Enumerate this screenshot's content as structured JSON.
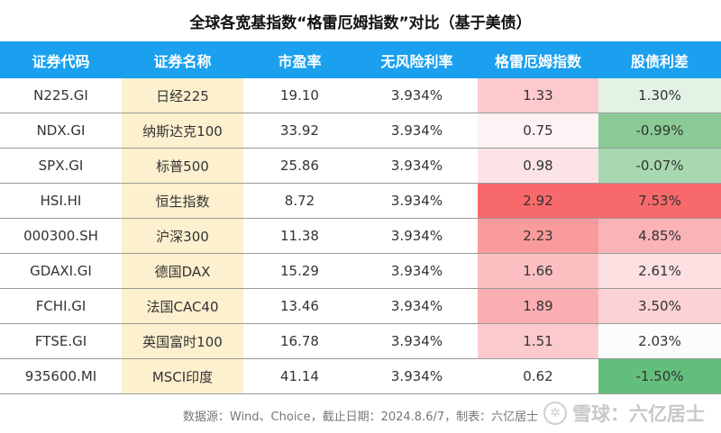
{
  "title": "全球各宽基指数“格雷厄姆指数”对比（基于美债）",
  "table": {
    "headers": [
      "证券代码",
      "证券名称",
      "市盈率",
      "无风险利率",
      "格雷厄姆指数",
      "股债利差"
    ],
    "rows": [
      {
        "code": "N225.GI",
        "name": "日经225",
        "pe": "19.10",
        "rf": "3.934%",
        "graham": "1.33",
        "spread": "1.30%",
        "graham_bg": "#fcc9cc",
        "spread_bg": "#e2f2e5"
      },
      {
        "code": "NDX.GI",
        "name": "纳斯达克100",
        "pe": "33.92",
        "rf": "3.934%",
        "graham": "0.75",
        "spread": "-0.99%",
        "graham_bg": "#fdf3f4",
        "spread_bg": "#8acb95"
      },
      {
        "code": "SPX.GI",
        "name": "标普500",
        "pe": "25.86",
        "rf": "3.934%",
        "graham": "0.98",
        "spread": "-0.07%",
        "graham_bg": "#fce4e6",
        "spread_bg": "#a8d8b0"
      },
      {
        "code": "HSI.HI",
        "name": "恒生指数",
        "pe": "8.72",
        "rf": "3.934%",
        "graham": "2.92",
        "spread": "7.53%",
        "graham_bg": "#f8696b",
        "spread_bg": "#f8696b"
      },
      {
        "code": "000300.SH",
        "name": "沪深300",
        "pe": "11.38",
        "rf": "3.934%",
        "graham": "2.23",
        "spread": "4.85%",
        "graham_bg": "#f99a9d",
        "spread_bg": "#fbb3b6"
      },
      {
        "code": "GDAXI.GI",
        "name": "德国DAX",
        "pe": "15.29",
        "rf": "3.934%",
        "graham": "1.66",
        "spread": "2.61%",
        "graham_bg": "#fbbfc2",
        "spread_bg": "#fde0e2"
      },
      {
        "code": "FCHI.GI",
        "name": "法国CAC40",
        "pe": "13.46",
        "rf": "3.934%",
        "graham": "1.89",
        "spread": "3.50%",
        "graham_bg": "#faaeb1",
        "spread_bg": "#fcd2d4"
      },
      {
        "code": "FTSE.GI",
        "name": "英国富时100",
        "pe": "16.78",
        "rf": "3.934%",
        "graham": "1.51",
        "spread": "2.03%",
        "graham_bg": "#fbcacd",
        "spread_bg": "#fcfcfe"
      },
      {
        "code": "935600.MI",
        "name": "MSCI印度",
        "pe": "41.14",
        "rf": "3.934%",
        "graham": "0.62",
        "spread": "-1.50%",
        "graham_bg": "#ffffff",
        "spread_bg": "#63be7b"
      }
    ]
  },
  "footer": "数据源：Wind、Choice，截止日期：2024.8.6/7，制表：六亿居士",
  "watermark": {
    "icon": "snowball-logo-icon",
    "text": "雪球：六亿居士"
  }
}
